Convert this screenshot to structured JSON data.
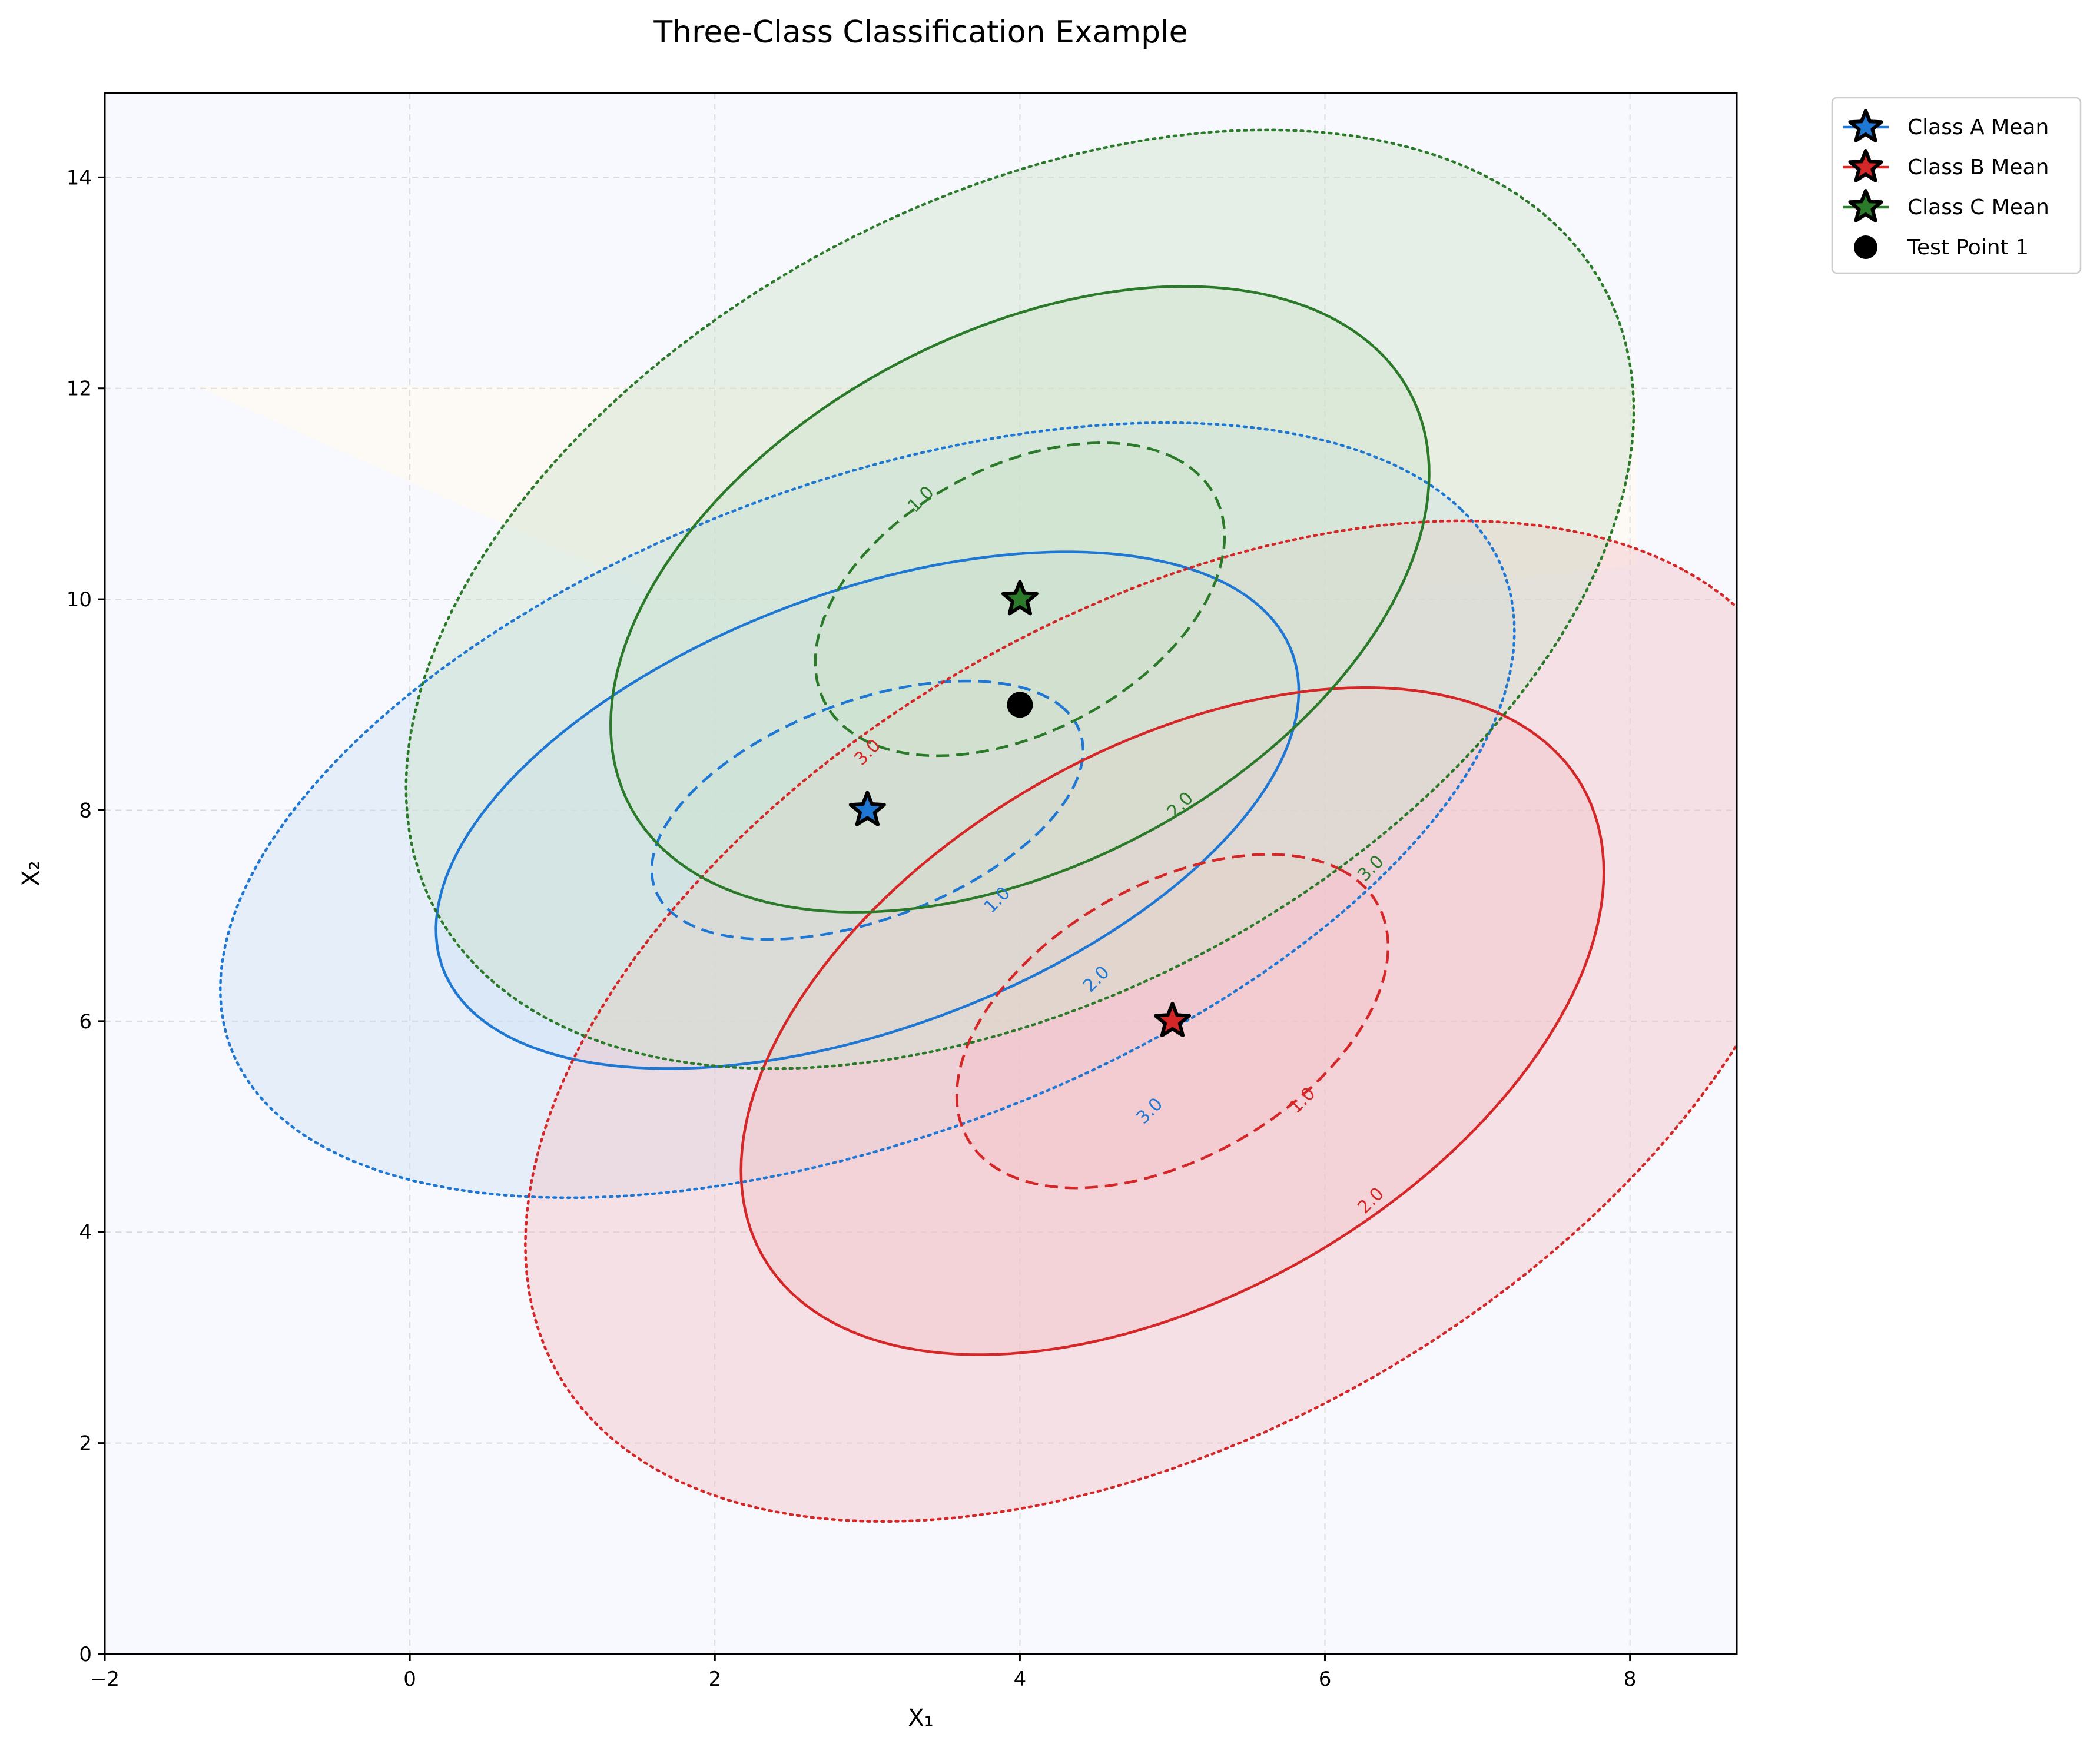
{
  "chart_data": {
    "type": "scatter",
    "title": "Three-Class Classification Example",
    "xlabel": "X₁",
    "ylabel": "X₂",
    "xlim": [
      -2,
      8.7
    ],
    "ylim": [
      0,
      14.8
    ],
    "xticks": [
      "−2",
      "0",
      "2",
      "4",
      "6",
      "8"
    ],
    "xtick_values": [
      -2,
      0,
      2,
      4,
      6,
      8
    ],
    "yticks": [
      "0",
      "2",
      "4",
      "6",
      "8",
      "10",
      "12",
      "14"
    ],
    "ytick_values": [
      0,
      2,
      4,
      6,
      8,
      10,
      12,
      14
    ],
    "grid": true,
    "legend_position": "outside-top-right",
    "classes": [
      {
        "name": "Class A Mean",
        "mean": [
          3,
          8
        ],
        "color": "#1f77d4",
        "fill": "#cfe0f5",
        "covariance": [
          [
            2.0,
            0.8
          ],
          [
            0.8,
            1.5
          ]
        ],
        "contours": [
          {
            "level": 1.0,
            "label": "1.0",
            "style": "dashed",
            "label_at": [
              3.85,
              7.15
            ]
          },
          {
            "level": 2.0,
            "label": "2.0",
            "style": "solid",
            "label_at": [
              4.5,
              6.4
            ]
          },
          {
            "level": 3.0,
            "label": "3.0",
            "style": "dotted",
            "label_at": [
              4.85,
              5.15
            ]
          }
        ]
      },
      {
        "name": "Class B Mean",
        "mean": [
          5,
          6
        ],
        "color": "#d62728",
        "fill": "#f2c4c7",
        "covariance": [
          [
            2.0,
            1.0
          ],
          [
            1.0,
            2.5
          ]
        ],
        "contours": [
          {
            "level": 1.0,
            "label": "1.0",
            "style": "dashed",
            "label_at": [
              5.85,
              5.25
            ]
          },
          {
            "level": 2.0,
            "label": "2.0",
            "style": "solid",
            "label_at": [
              6.3,
              4.3
            ]
          },
          {
            "level": 3.0,
            "label": "3.0",
            "style": "dotted",
            "label_at": [
              3.0,
              8.55
            ]
          }
        ]
      },
      {
        "name": "Class C Mean",
        "mean": [
          4,
          10
        ],
        "color": "#2a7a2a",
        "fill": "#cfe3cc",
        "covariance": [
          [
            1.8,
            0.8
          ],
          [
            0.8,
            2.2
          ]
        ],
        "contours": [
          {
            "level": 1.0,
            "label": "1.0",
            "style": "dashed",
            "label_at": [
              3.35,
              10.95
            ]
          },
          {
            "level": 2.0,
            "label": "2.0",
            "style": "solid",
            "label_at": [
              5.05,
              8.05
            ]
          },
          {
            "level": 3.0,
            "label": "3.0",
            "style": "dotted",
            "label_at": [
              6.3,
              7.45
            ]
          }
        ]
      }
    ],
    "test_points": [
      {
        "name": "Test Point 1",
        "x": 4,
        "y": 9,
        "color": "#000000"
      }
    ]
  }
}
